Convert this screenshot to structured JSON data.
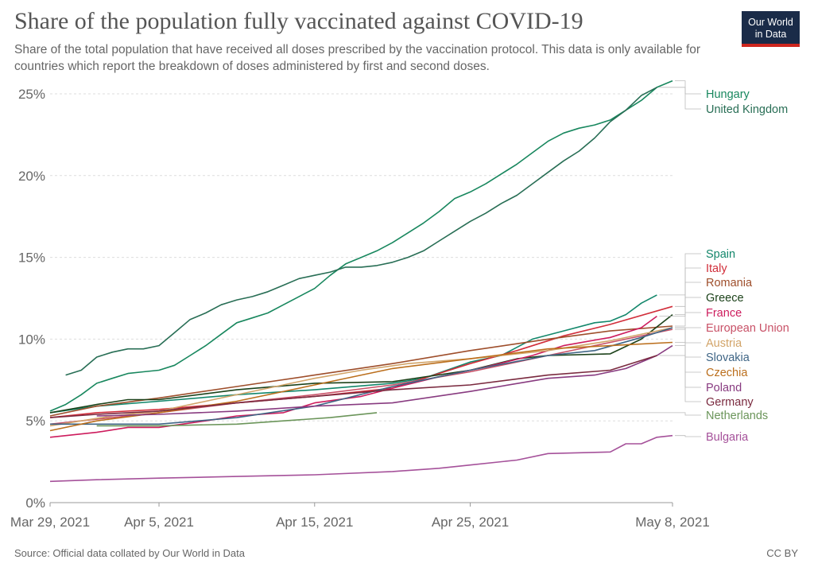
{
  "header": {
    "title": "Share of the population fully vaccinated against COVID-19",
    "subtitle": "Share of the total population that have received all doses prescribed by the vaccination protocol. This data is only available for countries which report the breakdown of doses administered by first and second doses."
  },
  "logo": {
    "line1": "Our World",
    "line2": "in Data",
    "bg_color": "#1a2b48",
    "accent_color": "#ce261e"
  },
  "footer": {
    "source": "Source: Official data collated by Our World in Data",
    "license": "CC BY"
  },
  "chart_data": {
    "type": "line",
    "title": "Share of the population fully vaccinated against COVID-19",
    "xlabel": "",
    "ylabel": "",
    "x_range": [
      "2021-03-29",
      "2021-05-08"
    ],
    "ylim": [
      0,
      25
    ],
    "y_ticks": [
      0,
      5,
      10,
      15,
      20,
      25
    ],
    "y_tick_labels": [
      "0%",
      "5%",
      "10%",
      "15%",
      "20%",
      "25%"
    ],
    "x_ticks": [
      "2021-03-29",
      "2021-04-05",
      "2021-04-15",
      "2021-04-25",
      "2021-05-08"
    ],
    "x_tick_labels": [
      "Mar 29, 2021",
      "Apr 5, 2021",
      "Apr 15, 2021",
      "Apr 25, 2021",
      "May 8, 2021"
    ],
    "grid": "horizontal dashed",
    "legend_position": "right",
    "series": [
      {
        "name": "Hungary",
        "color": "#18875e",
        "points": [
          [
            "2021-03-29",
            5.6
          ],
          [
            "2021-03-30",
            6.0
          ],
          [
            "2021-03-31",
            6.6
          ],
          [
            "2021-04-01",
            7.3
          ],
          [
            "2021-04-02",
            7.6
          ],
          [
            "2021-04-03",
            7.9
          ],
          [
            "2021-04-04",
            8.0
          ],
          [
            "2021-04-05",
            8.1
          ],
          [
            "2021-04-06",
            8.4
          ],
          [
            "2021-04-07",
            9.0
          ],
          [
            "2021-04-08",
            9.6
          ],
          [
            "2021-04-09",
            10.3
          ],
          [
            "2021-04-10",
            11.0
          ],
          [
            "2021-04-11",
            11.3
          ],
          [
            "2021-04-12",
            11.6
          ],
          [
            "2021-04-13",
            12.1
          ],
          [
            "2021-04-14",
            12.6
          ],
          [
            "2021-04-15",
            13.1
          ],
          [
            "2021-04-16",
            13.9
          ],
          [
            "2021-04-17",
            14.6
          ],
          [
            "2021-04-18",
            15.0
          ],
          [
            "2021-04-19",
            15.4
          ],
          [
            "2021-04-20",
            15.9
          ],
          [
            "2021-04-21",
            16.5
          ],
          [
            "2021-04-22",
            17.1
          ],
          [
            "2021-04-23",
            17.8
          ],
          [
            "2021-04-24",
            18.6
          ],
          [
            "2021-04-25",
            19.0
          ],
          [
            "2021-04-26",
            19.5
          ],
          [
            "2021-04-27",
            20.1
          ],
          [
            "2021-04-28",
            20.7
          ],
          [
            "2021-04-29",
            21.4
          ],
          [
            "2021-04-30",
            22.1
          ],
          [
            "2021-05-01",
            22.6
          ],
          [
            "2021-05-02",
            22.9
          ],
          [
            "2021-05-03",
            23.1
          ],
          [
            "2021-05-04",
            23.4
          ],
          [
            "2021-05-05",
            24.0
          ],
          [
            "2021-05-06",
            24.6
          ],
          [
            "2021-05-07",
            25.4
          ],
          [
            "2021-05-08",
            25.8
          ]
        ]
      },
      {
        "name": "United Kingdom",
        "color": "#286e55",
        "points": [
          [
            "2021-03-30",
            7.8
          ],
          [
            "2021-03-31",
            8.1
          ],
          [
            "2021-04-01",
            8.9
          ],
          [
            "2021-04-02",
            9.2
          ],
          [
            "2021-04-03",
            9.4
          ],
          [
            "2021-04-04",
            9.4
          ],
          [
            "2021-04-05",
            9.6
          ],
          [
            "2021-04-06",
            10.4
          ],
          [
            "2021-04-07",
            11.2
          ],
          [
            "2021-04-08",
            11.6
          ],
          [
            "2021-04-09",
            12.1
          ],
          [
            "2021-04-10",
            12.4
          ],
          [
            "2021-04-11",
            12.6
          ],
          [
            "2021-04-12",
            12.9
          ],
          [
            "2021-04-13",
            13.3
          ],
          [
            "2021-04-14",
            13.7
          ],
          [
            "2021-04-15",
            13.9
          ],
          [
            "2021-04-16",
            14.1
          ],
          [
            "2021-04-17",
            14.4
          ],
          [
            "2021-04-18",
            14.4
          ],
          [
            "2021-04-19",
            14.5
          ],
          [
            "2021-04-20",
            14.7
          ],
          [
            "2021-04-21",
            15.0
          ],
          [
            "2021-04-22",
            15.4
          ],
          [
            "2021-04-23",
            16.0
          ],
          [
            "2021-04-24",
            16.6
          ],
          [
            "2021-04-25",
            17.2
          ],
          [
            "2021-04-26",
            17.7
          ],
          [
            "2021-04-27",
            18.3
          ],
          [
            "2021-04-28",
            18.8
          ],
          [
            "2021-04-29",
            19.5
          ],
          [
            "2021-04-30",
            20.2
          ],
          [
            "2021-05-01",
            20.9
          ],
          [
            "2021-05-02",
            21.5
          ],
          [
            "2021-05-03",
            22.3
          ],
          [
            "2021-05-04",
            23.3
          ],
          [
            "2021-05-05",
            24.0
          ],
          [
            "2021-05-06",
            24.9
          ],
          [
            "2021-05-07",
            25.4
          ]
        ]
      },
      {
        "name": "Spain",
        "color": "#13876b",
        "points": [
          [
            "2021-03-29",
            5.5
          ],
          [
            "2021-04-01",
            5.9
          ],
          [
            "2021-04-05",
            6.2
          ],
          [
            "2021-04-10",
            6.6
          ],
          [
            "2021-04-15",
            6.9
          ],
          [
            "2021-04-20",
            7.3
          ],
          [
            "2021-04-22",
            7.6
          ],
          [
            "2021-04-25",
            8.6
          ],
          [
            "2021-04-27",
            9.0
          ],
          [
            "2021-04-29",
            10.0
          ],
          [
            "2021-05-01",
            10.5
          ],
          [
            "2021-05-03",
            11.0
          ],
          [
            "2021-05-04",
            11.1
          ],
          [
            "2021-05-05",
            11.5
          ],
          [
            "2021-05-06",
            12.2
          ],
          [
            "2021-05-07",
            12.7
          ]
        ]
      },
      {
        "name": "Italy",
        "color": "#d12e3a",
        "points": [
          [
            "2021-03-29",
            5.2
          ],
          [
            "2021-04-01",
            5.5
          ],
          [
            "2021-04-05",
            5.7
          ],
          [
            "2021-04-10",
            6.1
          ],
          [
            "2021-04-15",
            6.5
          ],
          [
            "2021-04-20",
            7.0
          ],
          [
            "2021-04-25",
            8.5
          ],
          [
            "2021-04-28",
            9.3
          ],
          [
            "2021-05-01",
            10.2
          ],
          [
            "2021-05-04",
            10.9
          ],
          [
            "2021-05-08",
            12.0
          ]
        ]
      },
      {
        "name": "Romania",
        "color": "#9e4e2b",
        "points": [
          [
            "2021-03-29",
            5.3
          ],
          [
            "2021-04-01",
            5.9
          ],
          [
            "2021-04-05",
            6.4
          ],
          [
            "2021-04-10",
            7.1
          ],
          [
            "2021-04-15",
            7.8
          ],
          [
            "2021-04-20",
            8.5
          ],
          [
            "2021-04-25",
            9.3
          ],
          [
            "2021-04-30",
            10.0
          ],
          [
            "2021-05-04",
            10.5
          ],
          [
            "2021-05-08",
            10.8
          ]
        ]
      },
      {
        "name": "Greece",
        "color": "#1c421a",
        "points": [
          [
            "2021-03-29",
            5.5
          ],
          [
            "2021-04-01",
            6.0
          ],
          [
            "2021-04-03",
            6.3
          ],
          [
            "2021-04-05",
            6.3
          ],
          [
            "2021-04-10",
            6.9
          ],
          [
            "2021-04-15",
            7.3
          ],
          [
            "2021-04-20",
            7.4
          ],
          [
            "2021-04-25",
            8.1
          ],
          [
            "2021-04-28",
            8.8
          ],
          [
            "2021-04-30",
            9.0
          ],
          [
            "2021-05-04",
            9.1
          ],
          [
            "2021-05-06",
            10.0
          ],
          [
            "2021-05-08",
            11.5
          ]
        ]
      },
      {
        "name": "France",
        "color": "#cd1c5d",
        "points": [
          [
            "2021-03-29",
            4.0
          ],
          [
            "2021-04-01",
            4.3
          ],
          [
            "2021-04-03",
            4.6
          ],
          [
            "2021-04-05",
            4.6
          ],
          [
            "2021-04-08",
            5.0
          ],
          [
            "2021-04-10",
            5.3
          ],
          [
            "2021-04-13",
            5.5
          ],
          [
            "2021-04-15",
            6.1
          ],
          [
            "2021-04-18",
            6.5
          ],
          [
            "2021-04-20",
            7.0
          ],
          [
            "2021-04-23",
            7.7
          ],
          [
            "2021-04-26",
            8.3
          ],
          [
            "2021-04-29",
            9.0
          ],
          [
            "2021-05-01",
            9.6
          ],
          [
            "2021-05-04",
            10.1
          ],
          [
            "2021-05-06",
            10.7
          ],
          [
            "2021-05-07",
            11.4
          ]
        ]
      },
      {
        "name": "European Union",
        "color": "#c85167",
        "points": [
          [
            "2021-03-29",
            4.8
          ],
          [
            "2021-04-01",
            5.1
          ],
          [
            "2021-04-05",
            5.5
          ],
          [
            "2021-04-10",
            6.1
          ],
          [
            "2021-04-15",
            6.6
          ],
          [
            "2021-04-20",
            7.2
          ],
          [
            "2021-04-25",
            8.0
          ],
          [
            "2021-04-30",
            9.0
          ],
          [
            "2021-05-04",
            9.8
          ],
          [
            "2021-05-08",
            10.6
          ]
        ]
      },
      {
        "name": "Austria",
        "color": "#d2a469",
        "points": [
          [
            "2021-03-29",
            4.7
          ],
          [
            "2021-04-02",
            5.3
          ],
          [
            "2021-04-05",
            5.6
          ],
          [
            "2021-04-09",
            6.4
          ],
          [
            "2021-04-12",
            7.0
          ],
          [
            "2021-04-15",
            7.6
          ],
          [
            "2021-04-18",
            8.1
          ],
          [
            "2021-04-21",
            8.5
          ],
          [
            "2021-04-25",
            8.8
          ],
          [
            "2021-04-30",
            9.3
          ],
          [
            "2021-05-04",
            9.9
          ],
          [
            "2021-05-08",
            10.7
          ]
        ]
      },
      {
        "name": "Slovakia",
        "color": "#3f6585",
        "points": [
          [
            "2021-03-29",
            4.8
          ],
          [
            "2021-04-05",
            4.8
          ],
          [
            "2021-04-10",
            5.2
          ],
          [
            "2021-04-15",
            5.9
          ],
          [
            "2021-04-20",
            7.1
          ],
          [
            "2021-04-25",
            8.1
          ],
          [
            "2021-04-30",
            9.0
          ],
          [
            "2021-05-03",
            9.3
          ],
          [
            "2021-05-06",
            10.1
          ],
          [
            "2021-05-08",
            10.7
          ]
        ]
      },
      {
        "name": "Czechia",
        "color": "#bb6f1d",
        "points": [
          [
            "2021-03-29",
            4.4
          ],
          [
            "2021-04-01",
            5.0
          ],
          [
            "2021-04-05",
            5.5
          ],
          [
            "2021-04-10",
            6.2
          ],
          [
            "2021-04-15",
            7.2
          ],
          [
            "2021-04-20",
            8.2
          ],
          [
            "2021-04-25",
            8.8
          ],
          [
            "2021-04-30",
            9.4
          ],
          [
            "2021-05-04",
            9.6
          ],
          [
            "2021-05-08",
            9.8
          ]
        ]
      },
      {
        "name": "Poland",
        "color": "#883b80",
        "points": [
          [
            "2021-04-01",
            5.3
          ],
          [
            "2021-04-05",
            5.4
          ],
          [
            "2021-04-10",
            5.6
          ],
          [
            "2021-04-15",
            5.9
          ],
          [
            "2021-04-20",
            6.1
          ],
          [
            "2021-04-25",
            6.8
          ],
          [
            "2021-04-30",
            7.6
          ],
          [
            "2021-05-03",
            7.8
          ],
          [
            "2021-05-05",
            8.2
          ],
          [
            "2021-05-07",
            9.0
          ],
          [
            "2021-05-08",
            9.6
          ]
        ]
      },
      {
        "name": "Germany",
        "color": "#7a2a3f",
        "points": [
          [
            "2021-03-29",
            5.2
          ],
          [
            "2021-04-01",
            5.4
          ],
          [
            "2021-04-05",
            5.6
          ],
          [
            "2021-04-10",
            6.1
          ],
          [
            "2021-04-15",
            6.5
          ],
          [
            "2021-04-20",
            6.9
          ],
          [
            "2021-04-25",
            7.2
          ],
          [
            "2021-04-30",
            7.8
          ],
          [
            "2021-05-04",
            8.1
          ],
          [
            "2021-05-07",
            9.0
          ]
        ]
      },
      {
        "name": "Netherlands",
        "color": "#6b955a",
        "points": [
          [
            "2021-04-01",
            4.7
          ],
          [
            "2021-04-05",
            4.7
          ],
          [
            "2021-04-10",
            4.8
          ],
          [
            "2021-04-13",
            5.0
          ],
          [
            "2021-04-16",
            5.2
          ],
          [
            "2021-04-19",
            5.5
          ]
        ]
      },
      {
        "name": "Bulgaria",
        "color": "#a5519a",
        "points": [
          [
            "2021-03-29",
            1.3
          ],
          [
            "2021-04-01",
            1.4
          ],
          [
            "2021-04-05",
            1.5
          ],
          [
            "2021-04-10",
            1.6
          ],
          [
            "2021-04-15",
            1.7
          ],
          [
            "2021-04-20",
            1.9
          ],
          [
            "2021-04-23",
            2.1
          ],
          [
            "2021-04-25",
            2.3
          ],
          [
            "2021-04-28",
            2.6
          ],
          [
            "2021-04-30",
            3.0
          ],
          [
            "2021-05-04",
            3.1
          ],
          [
            "2021-05-05",
            3.6
          ],
          [
            "2021-05-06",
            3.6
          ],
          [
            "2021-05-07",
            4.0
          ],
          [
            "2021-05-08",
            4.1
          ]
        ]
      }
    ]
  }
}
